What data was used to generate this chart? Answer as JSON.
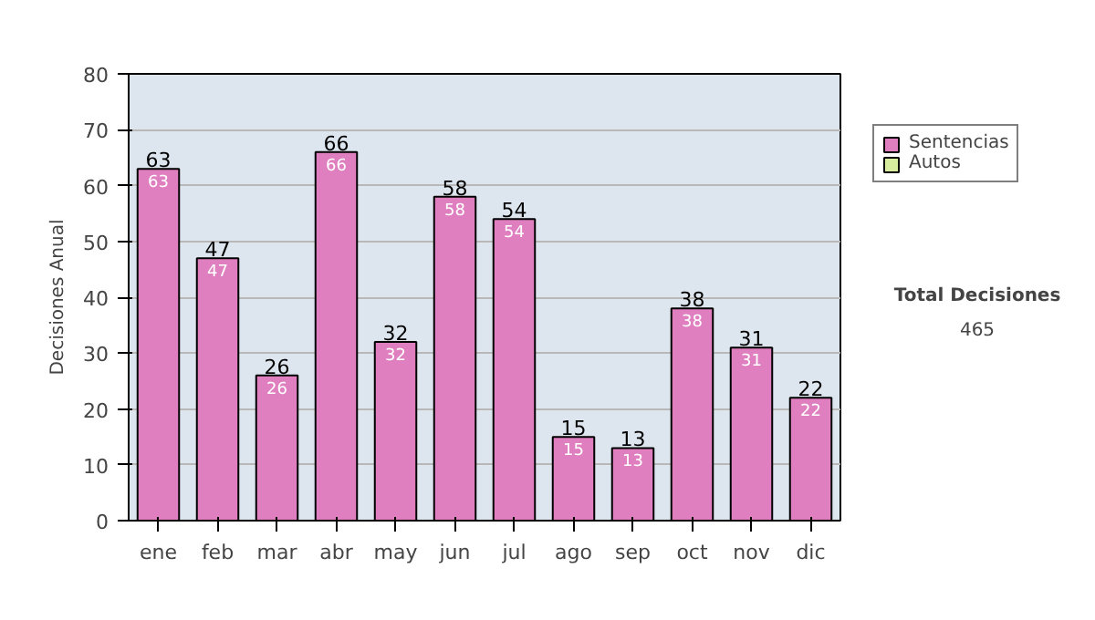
{
  "chart_data": {
    "type": "bar",
    "ylabel": "Decisiones Anual",
    "categories": [
      "ene",
      "feb",
      "mar",
      "abr",
      "may",
      "jun",
      "jul",
      "ago",
      "sep",
      "oct",
      "nov",
      "dic"
    ],
    "series": [
      {
        "name": "Sentencias",
        "color": "#e07fc0",
        "values": [
          63,
          47,
          26,
          66,
          32,
          58,
          54,
          15,
          13,
          38,
          31,
          22
        ],
        "value_labels": [
          "63",
          "47",
          "26",
          "66",
          "32",
          "58",
          "54",
          "15",
          "13",
          "38",
          "31",
          "22"
        ]
      },
      {
        "name": "Autos",
        "color": "#d8eca0",
        "values": [
          null,
          null,
          null,
          null,
          null,
          null,
          null,
          null,
          null,
          null,
          null,
          null
        ]
      }
    ],
    "totals": [
      "63",
      "47",
      "26",
      "66",
      "32",
      "58",
      "54",
      "15",
      "13",
      "38",
      "31",
      "22"
    ],
    "ylim": [
      0,
      80
    ],
    "yticks": [
      0,
      10,
      20,
      30,
      40,
      50,
      60,
      70,
      80
    ],
    "grid": "y",
    "legend": "right",
    "annotations": [
      "Total Decisiones",
      "465"
    ]
  }
}
